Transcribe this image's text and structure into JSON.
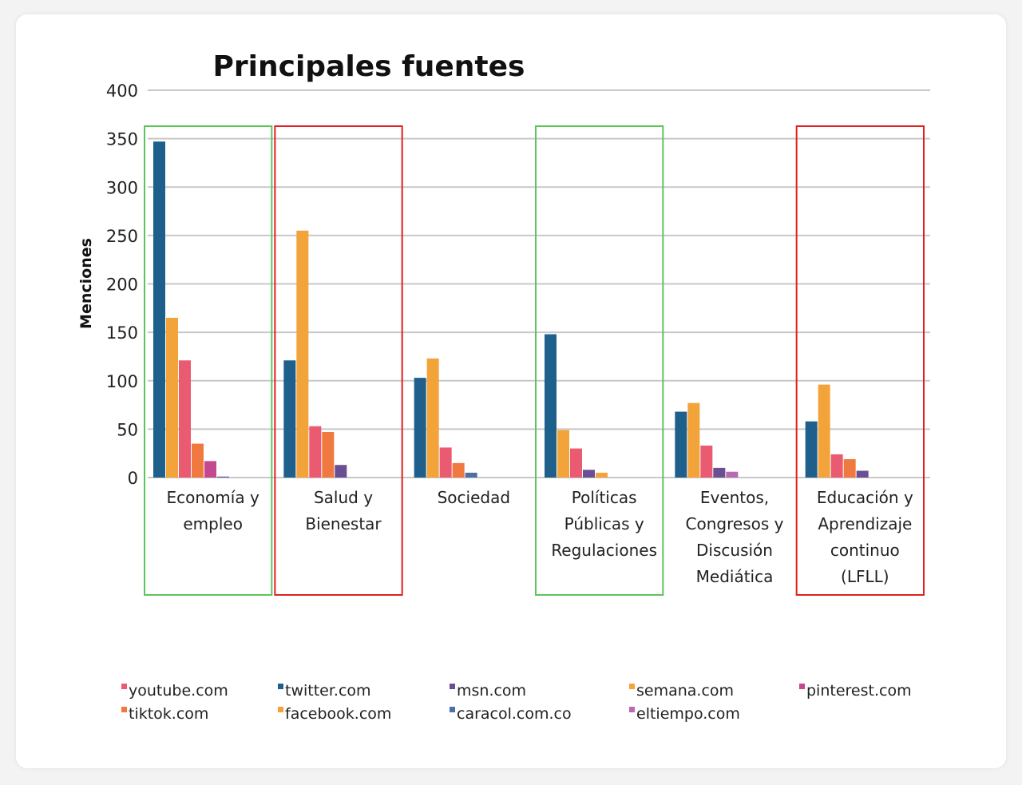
{
  "chart_data": {
    "type": "bar",
    "title": "Principales fuentes",
    "ylabel": "Menciones",
    "xlabel": "",
    "ylim": [
      0,
      400
    ],
    "yticks": [
      0,
      50,
      100,
      150,
      200,
      250,
      300,
      350,
      400
    ],
    "grid": true,
    "legend_position": "bottom",
    "categories": [
      [
        "Economía y",
        "empleo"
      ],
      [
        "Salud y",
        "Bienestar"
      ],
      [
        "Sociedad"
      ],
      [
        "Políticas",
        "Públicas y",
        "Regulaciones"
      ],
      [
        "Eventos,",
        "Congresos y",
        "Discusión",
        "Mediática"
      ],
      [
        "Educación y",
        "Aprendizaje",
        "continuo",
        "(LFLL)"
      ]
    ],
    "series": [
      {
        "name": "twitter.com",
        "color": "#1f5f8b",
        "values": [
          347,
          121,
          103,
          148,
          68,
          58
        ]
      },
      {
        "name": "facebook.com",
        "color": "#f2a33a",
        "values": [
          165,
          255,
          123,
          49,
          77,
          96
        ]
      },
      {
        "name": "youtube.com",
        "color": "#ea5a70",
        "values": [
          121,
          53,
          31,
          30,
          33,
          24
        ]
      },
      {
        "name": "tiktok.com",
        "color": "#f0793f",
        "values": [
          35,
          47,
          15,
          0,
          0,
          19
        ]
      },
      {
        "name": "pinterest.com",
        "color": "#c5478f",
        "values": [
          17,
          0,
          0,
          0,
          0,
          0
        ]
      },
      {
        "name": "msn.com",
        "color": "#6b4f93",
        "values": [
          1,
          13,
          0,
          8,
          10,
          7
        ]
      },
      {
        "name": "caracol.com.co",
        "color": "#4b6fa6",
        "values": [
          0,
          0,
          5,
          0,
          0,
          0
        ]
      },
      {
        "name": "semana.com",
        "color": "#f2a33a",
        "values": [
          0,
          0,
          0,
          5,
          0,
          0
        ]
      },
      {
        "name": "eltiempo.com",
        "color": "#b86bb0",
        "values": [
          0,
          0,
          0,
          0,
          6,
          0
        ]
      }
    ],
    "legend": [
      {
        "label": "youtube.com",
        "color": "#ea5a70"
      },
      {
        "label": "twitter.com",
        "color": "#1f5f8b"
      },
      {
        "label": "msn.com",
        "color": "#6b4f93"
      },
      {
        "label": "semana.com",
        "color": "#f2a33a"
      },
      {
        "label": "pinterest.com",
        "color": "#c5478f"
      },
      {
        "label": "tiktok.com",
        "color": "#f0793f"
      },
      {
        "label": "facebook.com",
        "color": "#f2a33a"
      },
      {
        "label": "caracol.com.co",
        "color": "#4b6fa6"
      },
      {
        "label": "eltiempo.com",
        "color": "#b86bb0"
      }
    ],
    "highlights": [
      {
        "category_index": 0,
        "color": "#5cc45c"
      },
      {
        "category_index": 1,
        "color": "#e02020"
      },
      {
        "category_index": 3,
        "color": "#5cc45c"
      },
      {
        "category_index": 5,
        "color": "#e02020"
      }
    ]
  }
}
